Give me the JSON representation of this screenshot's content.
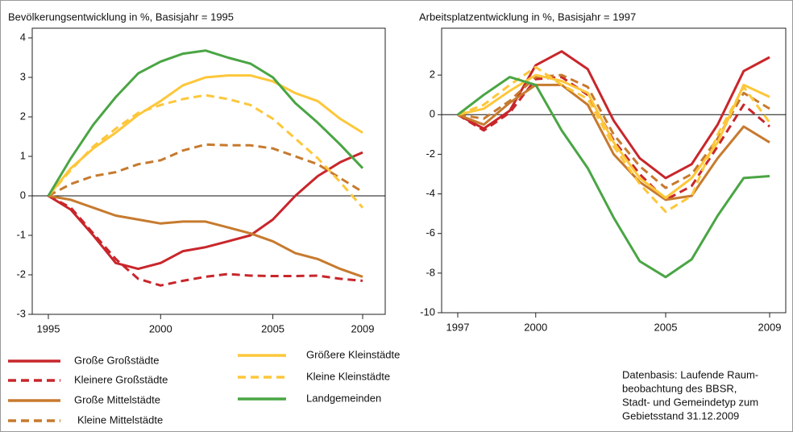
{
  "chart_data": [
    {
      "type": "line",
      "title": "Bevölkerungsentwicklung in %, Basisjahr = 1995",
      "x": [
        1995,
        1996,
        1997,
        1998,
        1999,
        2000,
        2001,
        2002,
        2003,
        2004,
        2005,
        2006,
        2007,
        2008,
        2009
      ],
      "xlim": [
        1995,
        2009
      ],
      "xticks": [
        1995,
        2000,
        2005,
        2009
      ],
      "ylim": [
        -3,
        4
      ],
      "yticks": [
        -3,
        -2,
        -1,
        0,
        1,
        2,
        3,
        4
      ],
      "series": [
        {
          "name": "Große Großstädte",
          "color": "#c8262b",
          "dashed": false,
          "values": [
            0,
            -0.35,
            -1.0,
            -1.7,
            -1.85,
            -1.7,
            -1.4,
            -1.3,
            -1.15,
            -1.0,
            -0.6,
            0.0,
            0.5,
            0.85,
            1.1
          ]
        },
        {
          "name": "Kleinere Großstädte",
          "color": "#c8262b",
          "dashed": true,
          "values": [
            0,
            -0.3,
            -0.95,
            -1.6,
            -2.1,
            -2.27,
            -2.15,
            -2.05,
            -1.98,
            -2.02,
            -2.03,
            -2.03,
            -2.02,
            -2.1,
            -2.15
          ]
        },
        {
          "name": "Große Mittelstädte",
          "color": "#c77a2e",
          "dashed": false,
          "values": [
            0,
            -0.1,
            -0.3,
            -0.5,
            -0.6,
            -0.7,
            -0.65,
            -0.65,
            -0.8,
            -0.95,
            -1.15,
            -1.45,
            -1.6,
            -1.85,
            -2.05
          ]
        },
        {
          "name": "Kleine Mittelstädte",
          "color": "#c77a2e",
          "dashed": true,
          "values": [
            0,
            0.3,
            0.5,
            0.6,
            0.8,
            0.9,
            1.15,
            1.3,
            1.28,
            1.28,
            1.2,
            1.0,
            0.8,
            0.45,
            0.1
          ]
        },
        {
          "name": "Größere Kleinstädte",
          "color": "#fdc73a",
          "dashed": false,
          "values": [
            0,
            0.7,
            1.2,
            1.6,
            2.05,
            2.4,
            2.8,
            3.0,
            3.05,
            3.05,
            2.9,
            2.6,
            2.4,
            1.95,
            1.6
          ]
        },
        {
          "name": "Kleine Kleinstädte",
          "color": "#fdc73a",
          "dashed": true,
          "values": [
            0,
            0.65,
            1.25,
            1.7,
            2.1,
            2.3,
            2.45,
            2.55,
            2.45,
            2.3,
            1.95,
            1.45,
            0.95,
            0.35,
            -0.3
          ]
        },
        {
          "name": "Landgemeinden",
          "color": "#4aa544",
          "dashed": false,
          "values": [
            0,
            0.95,
            1.8,
            2.5,
            3.1,
            3.4,
            3.6,
            3.68,
            3.5,
            3.35,
            3.0,
            2.35,
            1.85,
            1.3,
            0.7
          ]
        }
      ]
    },
    {
      "type": "line",
      "title": "Arbeitsplatzentwicklung in %, Basisjahr = 1997",
      "x": [
        1997,
        1998,
        1999,
        2000,
        2001,
        2002,
        2003,
        2004,
        2005,
        2006,
        2007,
        2008,
        2009
      ],
      "xlim": [
        1997,
        2009
      ],
      "xticks": [
        1997,
        2000,
        2005,
        2009
      ],
      "ylim": [
        -10,
        4
      ],
      "yticks": [
        -10,
        -8,
        -6,
        -4,
        -2,
        0,
        2
      ],
      "series": [
        {
          "color": "#c8262b",
          "dashed": false,
          "values": [
            0,
            -0.7,
            0.2,
            2.5,
            3.2,
            2.3,
            -0.3,
            -2.2,
            -3.2,
            -2.5,
            -0.5,
            2.2,
            2.9
          ]
        },
        {
          "color": "#c8262b",
          "dashed": true,
          "values": [
            0,
            -0.8,
            0.1,
            1.8,
            1.9,
            1.0,
            -1.3,
            -3.0,
            -4.3,
            -3.6,
            -1.6,
            0.5,
            -0.6
          ]
        },
        {
          "color": "#c77a2e",
          "dashed": false,
          "values": [
            0,
            -0.5,
            0.6,
            1.5,
            1.5,
            0.5,
            -2.0,
            -3.4,
            -4.3,
            -4.1,
            -2.2,
            -0.6,
            -1.4
          ]
        },
        {
          "color": "#c77a2e",
          "dashed": true,
          "values": [
            0,
            -0.2,
            0.7,
            1.9,
            2.0,
            1.4,
            -1.0,
            -2.6,
            -3.7,
            -3.0,
            -1.2,
            1.1,
            0.3
          ]
        },
        {
          "color": "#fdc73a",
          "dashed": false,
          "values": [
            0,
            0.3,
            1.2,
            2.0,
            1.7,
            1.1,
            -1.4,
            -3.2,
            -4.2,
            -3.2,
            -1.4,
            1.5,
            0.9
          ]
        },
        {
          "color": "#fdc73a",
          "dashed": true,
          "values": [
            0,
            0.5,
            1.5,
            2.4,
            1.5,
            0.8,
            -1.6,
            -3.5,
            -4.9,
            -4.1,
            -1.0,
            1.4,
            -0.4
          ]
        },
        {
          "color": "#4aa544",
          "dashed": false,
          "values": [
            0,
            1.0,
            1.9,
            1.5,
            -0.8,
            -2.7,
            -5.2,
            -7.4,
            -8.2,
            -7.3,
            -5.1,
            -3.2,
            -3.1
          ]
        }
      ]
    }
  ],
  "source": [
    "Datenbasis: Laufende Raum-",
    "beobachtung des BBSR,",
    "Stadt- und Gemeindetyp zum",
    "Gebietsstand 31.12.2009"
  ]
}
